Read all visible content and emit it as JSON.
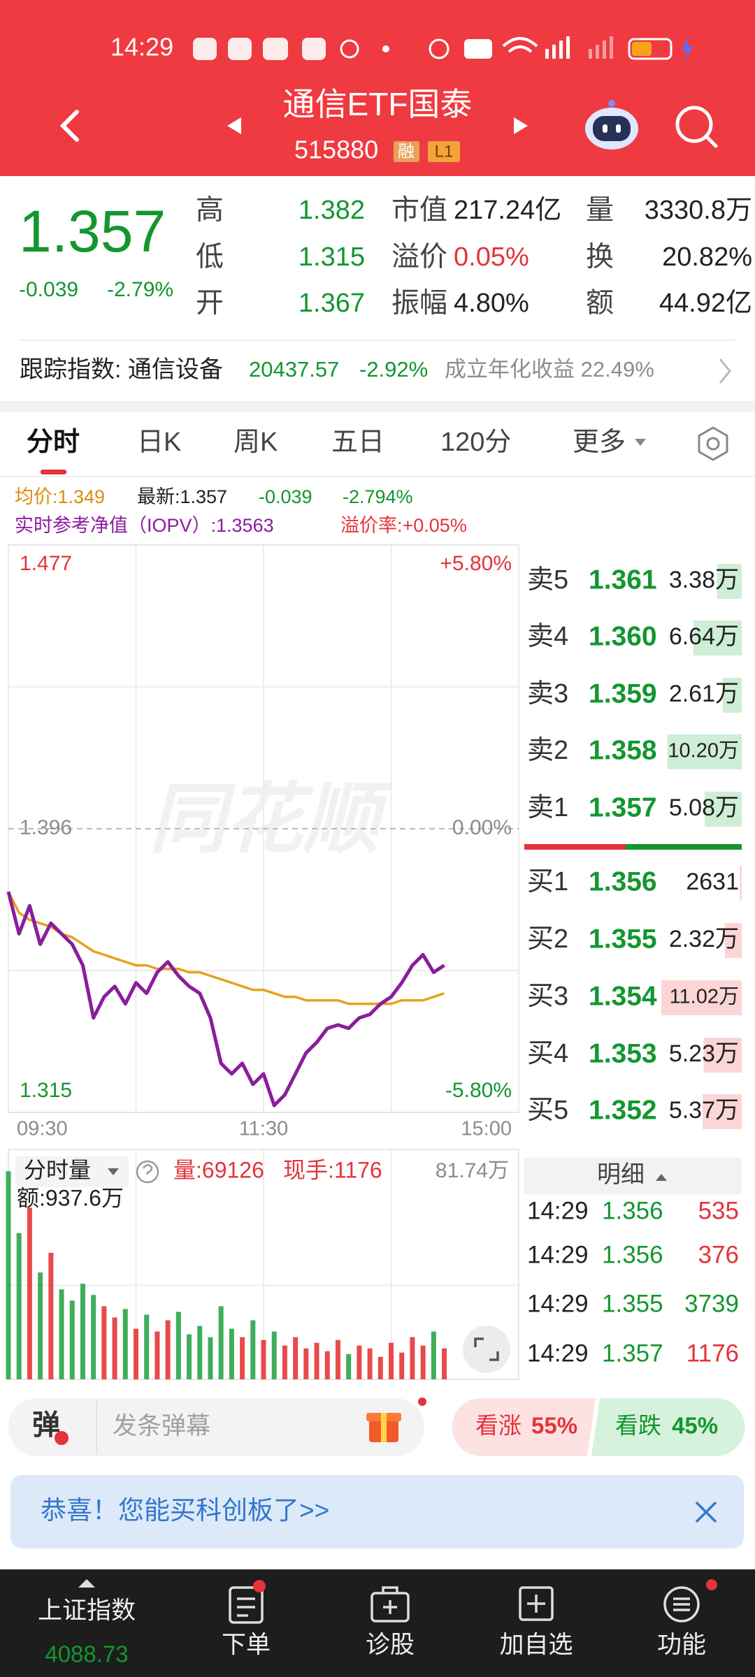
{
  "status_bar": {
    "time": "14:29"
  },
  "header": {
    "title": "通信ETF国泰",
    "code": "515880",
    "badges": [
      "融",
      "L1"
    ]
  },
  "quote": {
    "price": "1.357",
    "change": "-0.039",
    "change_pct": "-2.79%",
    "stats": [
      [
        {
          "label": "高",
          "value": "1.382"
        },
        {
          "label": "市值",
          "value": "217.24亿"
        },
        {
          "label": "量",
          "value": "3330.8万"
        }
      ],
      [
        {
          "label": "低",
          "value": "1.315"
        },
        {
          "label": "溢价",
          "value": "0.05%"
        },
        {
          "label": "换",
          "value": "20.82%"
        }
      ],
      [
        {
          "label": "开",
          "value": "1.367"
        },
        {
          "label": "振幅",
          "value": "4.80%"
        },
        {
          "label": "额",
          "value": "44.92亿"
        }
      ]
    ]
  },
  "tracking": {
    "label": "跟踪指数: 通信设备",
    "index_value": "20437.57",
    "index_change": "-2.92%",
    "annual_return": "成立年化收益 22.49%"
  },
  "tabs": [
    "分时",
    "日K",
    "周K",
    "五日",
    "120分",
    "更多"
  ],
  "legend": {
    "avg": "均价:1.349",
    "latest": "最新:1.357",
    "change": "-0.039",
    "change_pct": "-2.794%",
    "iopv": "实时参考净值（IOPV）:1.3563",
    "premium": "溢价率:+0.05%"
  },
  "chart_data": [
    {
      "type": "line",
      "watermark": "同花顺",
      "xlim": [
        0,
        240
      ],
      "xticks": [
        {
          "value": 0,
          "label": "09:30"
        },
        {
          "value": 120,
          "label": "11:30"
        },
        {
          "value": 240,
          "label": "15:00"
        }
      ],
      "ylim": [
        1.315,
        1.477
      ],
      "yticks": [
        1.477,
        1.396,
        1.315
      ],
      "y2lim": [
        -5.8,
        5.8
      ],
      "y2ticks": [
        {
          "value": 5.8,
          "label": "+5.80%"
        },
        {
          "value": 0,
          "label": "0.00%"
        },
        {
          "value": -5.8,
          "label": "-5.80%"
        }
      ],
      "x": [
        0,
        5,
        10,
        15,
        20,
        25,
        30,
        35,
        40,
        45,
        50,
        55,
        60,
        65,
        70,
        75,
        80,
        85,
        90,
        95,
        100,
        105,
        110,
        115,
        120,
        125,
        130,
        135,
        140,
        145,
        150,
        155,
        160,
        165,
        170,
        175,
        180,
        185,
        190,
        195,
        200,
        205
      ],
      "series": [
        {
          "color": "#8a1d9c",
          "values": [
            1.378,
            1.366,
            1.374,
            1.363,
            1.369,
            1.366,
            1.363,
            1.357,
            1.342,
            1.348,
            1.351,
            1.346,
            1.352,
            1.349,
            1.355,
            1.358,
            1.354,
            1.351,
            1.349,
            1.342,
            1.329,
            1.326,
            1.329,
            1.323,
            1.326,
            1.317,
            1.32,
            1.326,
            1.332,
            1.335,
            1.339,
            1.34,
            1.339,
            1.342,
            1.343,
            1.346,
            1.348,
            1.352,
            1.357,
            1.36,
            1.355,
            1.357
          ]
        },
        {
          "color": "#e5a11c",
          "values": [
            1.378,
            1.372,
            1.37,
            1.369,
            1.368,
            1.366,
            1.365,
            1.363,
            1.361,
            1.36,
            1.359,
            1.358,
            1.357,
            1.357,
            1.356,
            1.356,
            1.356,
            1.355,
            1.355,
            1.354,
            1.353,
            1.352,
            1.351,
            1.35,
            1.35,
            1.349,
            1.348,
            1.348,
            1.347,
            1.347,
            1.347,
            1.347,
            1.346,
            1.346,
            1.346,
            1.346,
            1.346,
            1.347,
            1.347,
            1.347,
            1.348,
            1.349
          ]
        }
      ]
    },
    {
      "type": "bar",
      "title": "分时量",
      "volume": "量:69126",
      "current": "现手:1176",
      "amount": "额:937.6万",
      "xlim": [
        0,
        240
      ],
      "ylim": [
        0,
        817400
      ],
      "yticks": [
        {
          "value": 817400,
          "label": "81.74万"
        }
      ],
      "x": [
        0,
        5,
        10,
        15,
        20,
        25,
        30,
        35,
        40,
        45,
        50,
        55,
        60,
        65,
        70,
        75,
        80,
        85,
        90,
        95,
        100,
        105,
        110,
        115,
        120,
        125,
        130,
        135,
        140,
        145,
        150,
        155,
        160,
        165,
        170,
        175,
        180,
        185,
        190,
        195,
        200,
        205
      ],
      "values": [
        740000,
        520000,
        610000,
        380000,
        450000,
        320000,
        280000,
        340000,
        300000,
        260000,
        220000,
        250000,
        180000,
        230000,
        170000,
        210000,
        240000,
        160000,
        190000,
        150000,
        260000,
        180000,
        150000,
        210000,
        140000,
        170000,
        120000,
        150000,
        110000,
        130000,
        100000,
        140000,
        90000,
        120000,
        110000,
        80000,
        130000,
        95000,
        150000,
        120000,
        170000,
        110000
      ],
      "colors": [
        "#3fae5a",
        "#3fae5a",
        "#e84a4a",
        "#3fae5a",
        "#e84a4a",
        "#3fae5a",
        "#3fae5a",
        "#3fae5a",
        "#3fae5a",
        "#e84a4a",
        "#e84a4a",
        "#3fae5a",
        "#e84a4a",
        "#3fae5a",
        "#e84a4a",
        "#e84a4a",
        "#3fae5a",
        "#3fae5a",
        "#3fae5a",
        "#3fae5a",
        "#3fae5a",
        "#3fae5a",
        "#e84a4a",
        "#3fae5a",
        "#e84a4a",
        "#3fae5a",
        "#e84a4a",
        "#e84a4a",
        "#e84a4a",
        "#e84a4a",
        "#e84a4a",
        "#e84a4a",
        "#3fae5a",
        "#e84a4a",
        "#e84a4a",
        "#e84a4a",
        "#e84a4a",
        "#e84a4a",
        "#e84a4a",
        "#e84a4a",
        "#3fae5a",
        "#e84a4a"
      ]
    }
  ],
  "order_book": {
    "sell": [
      {
        "label": "卖5",
        "price": "1.361",
        "volume": 33800,
        "volume_label": "3.38万"
      },
      {
        "label": "卖4",
        "price": "1.360",
        "volume": 66400,
        "volume_label": "6.64万"
      },
      {
        "label": "卖3",
        "price": "1.359",
        "volume": 26100,
        "volume_label": "2.61万"
      },
      {
        "label": "卖2",
        "price": "1.358",
        "volume": 102000,
        "volume_label": "10.20万"
      },
      {
        "label": "卖1",
        "price": "1.357",
        "volume": 50800,
        "volume_label": "5.08万"
      }
    ],
    "buy": [
      {
        "label": "买1",
        "price": "1.356",
        "volume": 2631
      },
      {
        "label": "买2",
        "price": "1.355",
        "volume": 23200,
        "volume_label": "2.32万"
      },
      {
        "label": "买3",
        "price": "1.354",
        "volume": 110200,
        "volume_label": "11.02万"
      },
      {
        "label": "买4",
        "price": "1.353",
        "volume": 52300,
        "volume_label": "5.23万"
      },
      {
        "label": "买5",
        "price": "1.352",
        "volume": 53700,
        "volume_label": "5.37万"
      }
    ]
  },
  "trades": {
    "title": "明细",
    "rows": [
      {
        "time": "14:29",
        "price": "1.356",
        "volume": "535",
        "color": "#e4333a"
      },
      {
        "time": "14:29",
        "price": "1.356",
        "volume": "376",
        "color": "#e4333a"
      },
      {
        "time": "14:29",
        "price": "1.355",
        "volume": "3739",
        "color": "#13962f"
      },
      {
        "time": "14:29",
        "price": "1.357",
        "volume": "1176",
        "color": "#e4333a"
      }
    ]
  },
  "danmu": {
    "icon": "弹",
    "placeholder": "发条弹幕"
  },
  "sentiment": {
    "bull": "看涨",
    "bull_pct": "55%",
    "bear": "看跌",
    "bear_pct": "45%"
  },
  "banner": "恭喜！您能买科创板了>>",
  "nav": [
    {
      "label": "上证指数",
      "value": "4088.73"
    },
    {
      "label": "下单"
    },
    {
      "label": "诊股"
    },
    {
      "label": "加自选"
    },
    {
      "label": "功能"
    }
  ]
}
